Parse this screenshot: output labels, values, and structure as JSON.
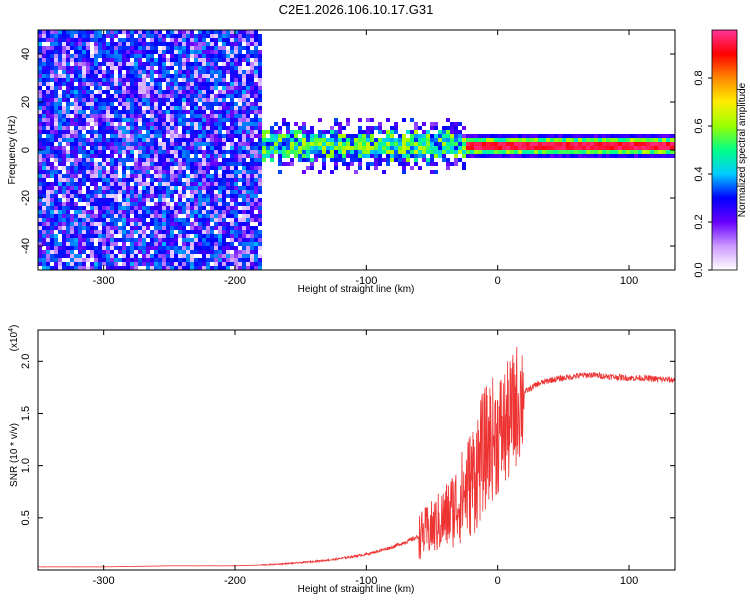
{
  "title": "C2E1.2026.106.10.17.G31",
  "chart_data": [
    {
      "type": "heatmap",
      "name": "spectrogram",
      "xlabel": "Height of straight line (km)",
      "ylabel": "Frequency (Hz)",
      "xlim": [
        -350,
        135
      ],
      "ylim": [
        -50,
        50
      ],
      "xticks": [
        -300,
        -200,
        -100,
        0,
        100
      ],
      "yticks": [
        -40,
        -20,
        0,
        20,
        40
      ],
      "colorbar": {
        "label": "Normalized spectral amplitude",
        "range": [
          0,
          1
        ],
        "ticks": [
          0.0,
          0.2,
          0.4,
          0.6,
          0.8
        ],
        "colormap": [
          "#ffffff",
          "#cc99ff",
          "#6600ff",
          "#0000ff",
          "#00ccff",
          "#00ff88",
          "#99ff00",
          "#ffee00",
          "#ff8800",
          "#ff0000",
          "#ff3399"
        ]
      },
      "regions": [
        {
          "x_range": [
            -350,
            -178
          ],
          "description": "broadband noise across all frequencies",
          "amplitude": 0.25
        },
        {
          "x_range": [
            -178,
            -25
          ],
          "center_hz": 2,
          "width_hz": 10,
          "amplitude": 0.45
        },
        {
          "x_range": [
            -25,
            135
          ],
          "center_hz": 2,
          "width_hz": 4,
          "amplitude": 0.95
        }
      ]
    },
    {
      "type": "line",
      "name": "snr",
      "xlabel": "Height of straight line (km)",
      "ylabel": "SNR (10 * v/v)",
      "multiplier_label": "(x10",
      "multiplier_exp": "4",
      "multiplier_close": ")",
      "xlim": [
        -350,
        135
      ],
      "ylim": [
        0,
        2.3
      ],
      "xticks": [
        -300,
        -200,
        -100,
        0,
        100
      ],
      "yticks": [
        0.5,
        1.0,
        1.5,
        2.0
      ],
      "series": [
        {
          "name": "SNR",
          "color": "#ee3333",
          "x": [
            -350,
            -300,
            -250,
            -200,
            -175,
            -150,
            -125,
            -100,
            -80,
            -60,
            -50,
            -40,
            -30,
            -20,
            -15,
            -10,
            -5,
            0,
            5,
            10,
            15,
            20,
            30,
            40,
            50,
            60,
            70,
            80,
            90,
            100,
            110,
            120,
            135
          ],
          "y": [
            0.03,
            0.03,
            0.04,
            0.04,
            0.05,
            0.07,
            0.1,
            0.15,
            0.22,
            0.32,
            0.4,
            0.5,
            0.65,
            0.85,
            1.0,
            1.15,
            1.25,
            1.3,
            1.35,
            1.45,
            1.6,
            1.7,
            1.78,
            1.82,
            1.84,
            1.86,
            1.87,
            1.86,
            1.85,
            1.84,
            1.84,
            1.83,
            1.82
          ]
        }
      ]
    }
  ]
}
